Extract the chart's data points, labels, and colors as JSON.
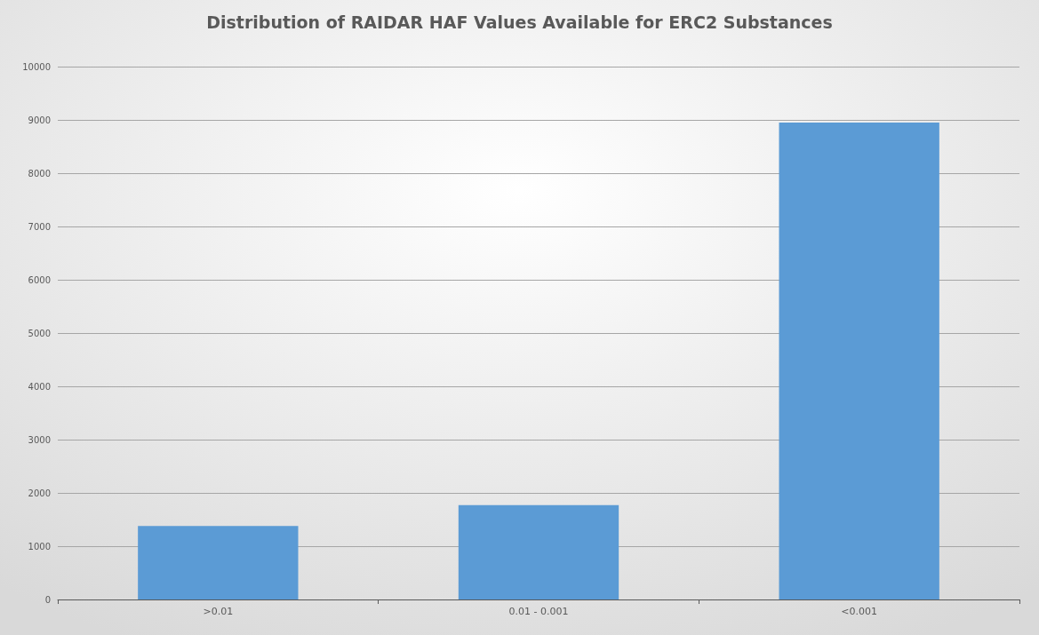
{
  "chart_data": {
    "type": "bar",
    "title": "Distribution of RAIDAR HAF Values Available for ERC2 Substances",
    "categories": [
      ">0.01",
      "0.01 - 0.001",
      "<0.001"
    ],
    "values": [
      1380,
      1770,
      8950
    ],
    "color": "#5b9bd5",
    "ylim": [
      0,
      10000
    ],
    "yticks": [
      0,
      1000,
      2000,
      3000,
      4000,
      5000,
      6000,
      7000,
      8000,
      9000,
      10000
    ],
    "grid": "y"
  }
}
